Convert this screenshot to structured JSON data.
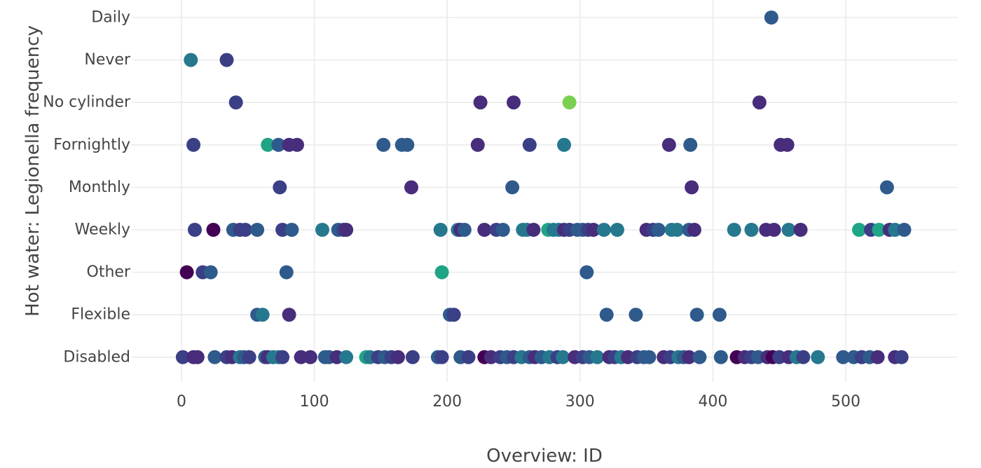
{
  "chart_data": {
    "type": "scatter",
    "xlabel": "Overview: ID",
    "ylabel": "Hot water: Legionella frequency",
    "xlim": [
      -37,
      585
    ],
    "x_ticks": [
      0,
      100,
      200,
      300,
      400,
      500
    ],
    "categories": [
      "Daily",
      "Never",
      "No cylinder",
      "Fornightly",
      "Monthly",
      "Weekly",
      "Other",
      "Flexible",
      "Disabled"
    ],
    "grid": true,
    "legend": "none",
    "colors": {
      "dark_purple": "#440154",
      "purple": "#472d7b",
      "indigo": "#3b3f86",
      "blue": "#2f5a8c",
      "teal": "#26788e",
      "green_teal": "#20a486",
      "light_green": "#7ad151"
    },
    "points": [
      {
        "x": 444,
        "y": "Daily",
        "c": "blue"
      },
      {
        "x": 7,
        "y": "Never",
        "c": "teal"
      },
      {
        "x": 34,
        "y": "Never",
        "c": "indigo"
      },
      {
        "x": 41,
        "y": "No cylinder",
        "c": "indigo"
      },
      {
        "x": 225,
        "y": "No cylinder",
        "c": "purple"
      },
      {
        "x": 250,
        "y": "No cylinder",
        "c": "purple"
      },
      {
        "x": 292,
        "y": "No cylinder",
        "c": "light_green"
      },
      {
        "x": 435,
        "y": "No cylinder",
        "c": "purple"
      },
      {
        "x": 9,
        "y": "Fornightly",
        "c": "indigo"
      },
      {
        "x": 65,
        "y": "Fornightly",
        "c": "green_teal"
      },
      {
        "x": 73,
        "y": "Fornightly",
        "c": "blue"
      },
      {
        "x": 81,
        "y": "Fornightly",
        "c": "purple"
      },
      {
        "x": 87,
        "y": "Fornightly",
        "c": "purple"
      },
      {
        "x": 152,
        "y": "Fornightly",
        "c": "blue"
      },
      {
        "x": 166,
        "y": "Fornightly",
        "c": "blue"
      },
      {
        "x": 170,
        "y": "Fornightly",
        "c": "blue"
      },
      {
        "x": 223,
        "y": "Fornightly",
        "c": "purple"
      },
      {
        "x": 262,
        "y": "Fornightly",
        "c": "indigo"
      },
      {
        "x": 288,
        "y": "Fornightly",
        "c": "teal"
      },
      {
        "x": 367,
        "y": "Fornightly",
        "c": "purple"
      },
      {
        "x": 383,
        "y": "Fornightly",
        "c": "blue"
      },
      {
        "x": 451,
        "y": "Fornightly",
        "c": "purple"
      },
      {
        "x": 456,
        "y": "Fornightly",
        "c": "purple"
      },
      {
        "x": 74,
        "y": "Monthly",
        "c": "indigo"
      },
      {
        "x": 173,
        "y": "Monthly",
        "c": "purple"
      },
      {
        "x": 249,
        "y": "Monthly",
        "c": "blue"
      },
      {
        "x": 384,
        "y": "Monthly",
        "c": "purple"
      },
      {
        "x": 531,
        "y": "Monthly",
        "c": "blue"
      },
      {
        "x": 10,
        "y": "Weekly",
        "c": "indigo"
      },
      {
        "x": 24,
        "y": "Weekly",
        "c": "dark_purple"
      },
      {
        "x": 39,
        "y": "Weekly",
        "c": "blue"
      },
      {
        "x": 44,
        "y": "Weekly",
        "c": "indigo"
      },
      {
        "x": 48,
        "y": "Weekly",
        "c": "indigo"
      },
      {
        "x": 57,
        "y": "Weekly",
        "c": "blue"
      },
      {
        "x": 76,
        "y": "Weekly",
        "c": "indigo"
      },
      {
        "x": 83,
        "y": "Weekly",
        "c": "blue"
      },
      {
        "x": 106,
        "y": "Weekly",
        "c": "teal"
      },
      {
        "x": 118,
        "y": "Weekly",
        "c": "blue"
      },
      {
        "x": 122,
        "y": "Weekly",
        "c": "indigo"
      },
      {
        "x": 124,
        "y": "Weekly",
        "c": "purple"
      },
      {
        "x": 195,
        "y": "Weekly",
        "c": "teal"
      },
      {
        "x": 208,
        "y": "Weekly",
        "c": "teal"
      },
      {
        "x": 210,
        "y": "Weekly",
        "c": "purple"
      },
      {
        "x": 213,
        "y": "Weekly",
        "c": "blue"
      },
      {
        "x": 228,
        "y": "Weekly",
        "c": "purple"
      },
      {
        "x": 237,
        "y": "Weekly",
        "c": "indigo"
      },
      {
        "x": 242,
        "y": "Weekly",
        "c": "blue"
      },
      {
        "x": 257,
        "y": "Weekly",
        "c": "teal"
      },
      {
        "x": 260,
        "y": "Weekly",
        "c": "teal"
      },
      {
        "x": 265,
        "y": "Weekly",
        "c": "purple"
      },
      {
        "x": 276,
        "y": "Weekly",
        "c": "green_teal"
      },
      {
        "x": 280,
        "y": "Weekly",
        "c": "teal"
      },
      {
        "x": 284,
        "y": "Weekly",
        "c": "teal"
      },
      {
        "x": 288,
        "y": "Weekly",
        "c": "purple"
      },
      {
        "x": 292,
        "y": "Weekly",
        "c": "indigo"
      },
      {
        "x": 298,
        "y": "Weekly",
        "c": "blue"
      },
      {
        "x": 302,
        "y": "Weekly",
        "c": "blue"
      },
      {
        "x": 306,
        "y": "Weekly",
        "c": "indigo"
      },
      {
        "x": 310,
        "y": "Weekly",
        "c": "purple"
      },
      {
        "x": 318,
        "y": "Weekly",
        "c": "teal"
      },
      {
        "x": 328,
        "y": "Weekly",
        "c": "teal"
      },
      {
        "x": 350,
        "y": "Weekly",
        "c": "purple"
      },
      {
        "x": 355,
        "y": "Weekly",
        "c": "indigo"
      },
      {
        "x": 359,
        "y": "Weekly",
        "c": "blue"
      },
      {
        "x": 369,
        "y": "Weekly",
        "c": "teal"
      },
      {
        "x": 373,
        "y": "Weekly",
        "c": "teal"
      },
      {
        "x": 382,
        "y": "Weekly",
        "c": "blue"
      },
      {
        "x": 386,
        "y": "Weekly",
        "c": "purple"
      },
      {
        "x": 416,
        "y": "Weekly",
        "c": "teal"
      },
      {
        "x": 429,
        "y": "Weekly",
        "c": "teal"
      },
      {
        "x": 440,
        "y": "Weekly",
        "c": "purple"
      },
      {
        "x": 446,
        "y": "Weekly",
        "c": "purple"
      },
      {
        "x": 457,
        "y": "Weekly",
        "c": "teal"
      },
      {
        "x": 466,
        "y": "Weekly",
        "c": "purple"
      },
      {
        "x": 510,
        "y": "Weekly",
        "c": "green_teal"
      },
      {
        "x": 519,
        "y": "Weekly",
        "c": "indigo"
      },
      {
        "x": 525,
        "y": "Weekly",
        "c": "green_teal"
      },
      {
        "x": 533,
        "y": "Weekly",
        "c": "purple"
      },
      {
        "x": 537,
        "y": "Weekly",
        "c": "teal"
      },
      {
        "x": 544,
        "y": "Weekly",
        "c": "blue"
      },
      {
        "x": 4,
        "y": "Other",
        "c": "dark_purple"
      },
      {
        "x": 16,
        "y": "Other",
        "c": "indigo"
      },
      {
        "x": 22,
        "y": "Other",
        "c": "blue"
      },
      {
        "x": 79,
        "y": "Other",
        "c": "blue"
      },
      {
        "x": 196,
        "y": "Other",
        "c": "green_teal"
      },
      {
        "x": 305,
        "y": "Other",
        "c": "blue"
      },
      {
        "x": 57,
        "y": "Flexible",
        "c": "blue"
      },
      {
        "x": 61,
        "y": "Flexible",
        "c": "teal"
      },
      {
        "x": 81,
        "y": "Flexible",
        "c": "purple"
      },
      {
        "x": 202,
        "y": "Flexible",
        "c": "blue"
      },
      {
        "x": 205,
        "y": "Flexible",
        "c": "indigo"
      },
      {
        "x": 320,
        "y": "Flexible",
        "c": "blue"
      },
      {
        "x": 342,
        "y": "Flexible",
        "c": "blue"
      },
      {
        "x": 388,
        "y": "Flexible",
        "c": "blue"
      },
      {
        "x": 405,
        "y": "Flexible",
        "c": "blue"
      },
      {
        "x": 1,
        "y": "Disabled",
        "c": "indigo"
      },
      {
        "x": 9,
        "y": "Disabled",
        "c": "purple"
      },
      {
        "x": 12,
        "y": "Disabled",
        "c": "purple"
      },
      {
        "x": 25,
        "y": "Disabled",
        "c": "blue"
      },
      {
        "x": 34,
        "y": "Disabled",
        "c": "indigo"
      },
      {
        "x": 38,
        "y": "Disabled",
        "c": "purple"
      },
      {
        "x": 44,
        "y": "Disabled",
        "c": "teal"
      },
      {
        "x": 47,
        "y": "Disabled",
        "c": "blue"
      },
      {
        "x": 51,
        "y": "Disabled",
        "c": "indigo"
      },
      {
        "x": 63,
        "y": "Disabled",
        "c": "blue"
      },
      {
        "x": 65,
        "y": "Disabled",
        "c": "purple"
      },
      {
        "x": 69,
        "y": "Disabled",
        "c": "teal"
      },
      {
        "x": 73,
        "y": "Disabled",
        "c": "teal"
      },
      {
        "x": 76,
        "y": "Disabled",
        "c": "indigo"
      },
      {
        "x": 90,
        "y": "Disabled",
        "c": "purple"
      },
      {
        "x": 97,
        "y": "Disabled",
        "c": "purple"
      },
      {
        "x": 108,
        "y": "Disabled",
        "c": "blue"
      },
      {
        "x": 111,
        "y": "Disabled",
        "c": "blue"
      },
      {
        "x": 117,
        "y": "Disabled",
        "c": "purple"
      },
      {
        "x": 124,
        "y": "Disabled",
        "c": "teal"
      },
      {
        "x": 139,
        "y": "Disabled",
        "c": "green_teal"
      },
      {
        "x": 142,
        "y": "Disabled",
        "c": "teal"
      },
      {
        "x": 148,
        "y": "Disabled",
        "c": "indigo"
      },
      {
        "x": 153,
        "y": "Disabled",
        "c": "blue"
      },
      {
        "x": 158,
        "y": "Disabled",
        "c": "indigo"
      },
      {
        "x": 163,
        "y": "Disabled",
        "c": "purple"
      },
      {
        "x": 174,
        "y": "Disabled",
        "c": "indigo"
      },
      {
        "x": 193,
        "y": "Disabled",
        "c": "blue"
      },
      {
        "x": 196,
        "y": "Disabled",
        "c": "indigo"
      },
      {
        "x": 210,
        "y": "Disabled",
        "c": "blue"
      },
      {
        "x": 216,
        "y": "Disabled",
        "c": "indigo"
      },
      {
        "x": 228,
        "y": "Disabled",
        "c": "dark_purple"
      },
      {
        "x": 233,
        "y": "Disabled",
        "c": "purple"
      },
      {
        "x": 240,
        "y": "Disabled",
        "c": "indigo"
      },
      {
        "x": 245,
        "y": "Disabled",
        "c": "blue"
      },
      {
        "x": 250,
        "y": "Disabled",
        "c": "indigo"
      },
      {
        "x": 256,
        "y": "Disabled",
        "c": "teal"
      },
      {
        "x": 262,
        "y": "Disabled",
        "c": "blue"
      },
      {
        "x": 266,
        "y": "Disabled",
        "c": "purple"
      },
      {
        "x": 271,
        "y": "Disabled",
        "c": "blue"
      },
      {
        "x": 277,
        "y": "Disabled",
        "c": "teal"
      },
      {
        "x": 283,
        "y": "Disabled",
        "c": "indigo"
      },
      {
        "x": 287,
        "y": "Disabled",
        "c": "teal"
      },
      {
        "x": 296,
        "y": "Disabled",
        "c": "purple"
      },
      {
        "x": 302,
        "y": "Disabled",
        "c": "indigo"
      },
      {
        "x": 307,
        "y": "Disabled",
        "c": "blue"
      },
      {
        "x": 313,
        "y": "Disabled",
        "c": "teal"
      },
      {
        "x": 322,
        "y": "Disabled",
        "c": "purple"
      },
      {
        "x": 326,
        "y": "Disabled",
        "c": "indigo"
      },
      {
        "x": 331,
        "y": "Disabled",
        "c": "teal"
      },
      {
        "x": 336,
        "y": "Disabled",
        "c": "purple"
      },
      {
        "x": 343,
        "y": "Disabled",
        "c": "indigo"
      },
      {
        "x": 348,
        "y": "Disabled",
        "c": "blue"
      },
      {
        "x": 352,
        "y": "Disabled",
        "c": "blue"
      },
      {
        "x": 363,
        "y": "Disabled",
        "c": "purple"
      },
      {
        "x": 368,
        "y": "Disabled",
        "c": "indigo"
      },
      {
        "x": 374,
        "y": "Disabled",
        "c": "teal"
      },
      {
        "x": 378,
        "y": "Disabled",
        "c": "blue"
      },
      {
        "x": 382,
        "y": "Disabled",
        "c": "purple"
      },
      {
        "x": 390,
        "y": "Disabled",
        "c": "blue"
      },
      {
        "x": 406,
        "y": "Disabled",
        "c": "blue"
      },
      {
        "x": 418,
        "y": "Disabled",
        "c": "dark_purple"
      },
      {
        "x": 424,
        "y": "Disabled",
        "c": "purple"
      },
      {
        "x": 429,
        "y": "Disabled",
        "c": "indigo"
      },
      {
        "x": 434,
        "y": "Disabled",
        "c": "blue"
      },
      {
        "x": 441,
        "y": "Disabled",
        "c": "purple"
      },
      {
        "x": 445,
        "y": "Disabled",
        "c": "dark_purple"
      },
      {
        "x": 450,
        "y": "Disabled",
        "c": "indigo"
      },
      {
        "x": 457,
        "y": "Disabled",
        "c": "purple"
      },
      {
        "x": 463,
        "y": "Disabled",
        "c": "teal"
      },
      {
        "x": 468,
        "y": "Disabled",
        "c": "indigo"
      },
      {
        "x": 479,
        "y": "Disabled",
        "c": "teal"
      },
      {
        "x": 498,
        "y": "Disabled",
        "c": "blue"
      },
      {
        "x": 506,
        "y": "Disabled",
        "c": "blue"
      },
      {
        "x": 512,
        "y": "Disabled",
        "c": "indigo"
      },
      {
        "x": 518,
        "y": "Disabled",
        "c": "blue"
      },
      {
        "x": 524,
        "y": "Disabled",
        "c": "purple"
      },
      {
        "x": 537,
        "y": "Disabled",
        "c": "purple"
      },
      {
        "x": 542,
        "y": "Disabled",
        "c": "indigo"
      }
    ]
  }
}
